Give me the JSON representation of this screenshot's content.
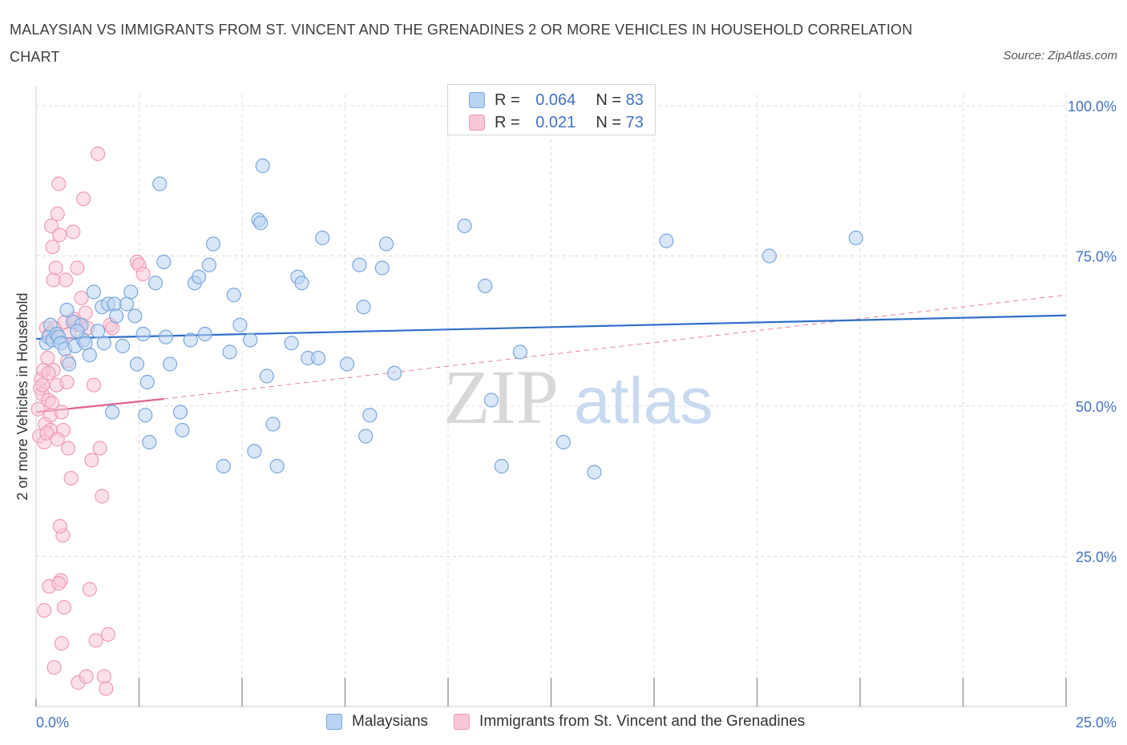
{
  "title": "MALAYSIAN VS IMMIGRANTS FROM ST. VINCENT AND THE GRENADINES 2 OR MORE VEHICLES IN HOUSEHOLD CORRELATION CHART",
  "source": "Source: ZipAtlas.com",
  "watermark": {
    "zip": "ZIP",
    "atlas": "atlas"
  },
  "legend": {
    "rows": [
      {
        "r_label": "R =",
        "r_value": "0.064",
        "n_label": "N =",
        "n_value": "83"
      },
      {
        "r_label": "R =",
        "r_value": "0.021",
        "n_label": "N =",
        "n_value": "73"
      }
    ]
  },
  "bottom_legend": [
    "Malaysians",
    "Immigrants from St. Vincent and the Grenadines"
  ],
  "colors": {
    "blue_fill": "#b9d3f3",
    "blue_stroke": "#7aa6dc",
    "blue_line": "#2f6fca",
    "pink_fill": "#f8c7d6",
    "pink_stroke": "#ef9ab4",
    "pink_line": "#e0628e",
    "axis_label": "#4472c4",
    "grid": "#dcdcdc"
  },
  "chart_data": {
    "type": "scatter",
    "title": "MALAYSIAN VS IMMIGRANTS FROM ST. VINCENT AND THE GRENADINES 2 OR MORE VEHICLES IN HOUSEHOLD CORRELATION CHART",
    "xlabel": "",
    "ylabel": "2 or more Vehicles in Household",
    "xlim": [
      0,
      25
    ],
    "ylim": [
      0,
      100
    ],
    "x_ticks": [
      "0.0%",
      "25.0%"
    ],
    "y_ticks": [
      "25.0%",
      "50.0%",
      "75.0%",
      "100.0%"
    ],
    "y_tick_values": [
      25,
      50,
      75,
      100
    ],
    "grid": true,
    "legend_position": "top-center",
    "series": [
      {
        "name": "Malaysians",
        "R": 0.064,
        "N": 83,
        "trend": {
          "x": [
            0,
            25
          ],
          "y": [
            61.2,
            65.1
          ],
          "style": "solid"
        },
        "points": [
          [
            0.25,
            60.5
          ],
          [
            0.3,
            61.5
          ],
          [
            0.35,
            63.5
          ],
          [
            0.4,
            61.0
          ],
          [
            0.5,
            62.0
          ],
          [
            0.55,
            61.5
          ],
          [
            0.6,
            60.5
          ],
          [
            0.7,
            59.5
          ],
          [
            0.8,
            57.0
          ],
          [
            0.9,
            64.0
          ],
          [
            0.95,
            60.0
          ],
          [
            1.1,
            63.5
          ],
          [
            1.15,
            61.0
          ],
          [
            1.2,
            60.5
          ],
          [
            1.3,
            58.5
          ],
          [
            1.4,
            69.0
          ],
          [
            1.5,
            62.5
          ],
          [
            1.6,
            66.5
          ],
          [
            1.65,
            60.5
          ],
          [
            1.75,
            67.0
          ],
          [
            1.85,
            49.0
          ],
          [
            1.9,
            67.0
          ],
          [
            1.95,
            65.0
          ],
          [
            2.1,
            60.0
          ],
          [
            2.2,
            67.0
          ],
          [
            2.3,
            69.0
          ],
          [
            2.4,
            65.0
          ],
          [
            2.45,
            57.0
          ],
          [
            2.6,
            62.0
          ],
          [
            2.65,
            48.5
          ],
          [
            2.7,
            54.0
          ],
          [
            2.75,
            44.0
          ],
          [
            2.9,
            70.5
          ],
          [
            3.0,
            87.0
          ],
          [
            3.1,
            74.0
          ],
          [
            3.15,
            61.5
          ],
          [
            3.25,
            57.0
          ],
          [
            3.5,
            49.0
          ],
          [
            3.55,
            46.0
          ],
          [
            3.75,
            61.0
          ],
          [
            3.85,
            70.5
          ],
          [
            3.95,
            71.5
          ],
          [
            4.1,
            62.0
          ],
          [
            4.2,
            73.5
          ],
          [
            4.3,
            77.0
          ],
          [
            4.55,
            40.0
          ],
          [
            4.7,
            59.0
          ],
          [
            4.8,
            68.5
          ],
          [
            4.95,
            63.5
          ],
          [
            5.2,
            61.0
          ],
          [
            5.3,
            42.5
          ],
          [
            5.4,
            81.0
          ],
          [
            5.45,
            80.5
          ],
          [
            5.5,
            90.0
          ],
          [
            5.6,
            55.0
          ],
          [
            5.75,
            47.0
          ],
          [
            5.85,
            40.0
          ],
          [
            6.2,
            60.5
          ],
          [
            6.35,
            71.5
          ],
          [
            6.45,
            70.5
          ],
          [
            6.6,
            58.0
          ],
          [
            6.85,
            58.0
          ],
          [
            6.95,
            78.0
          ],
          [
            7.55,
            57.0
          ],
          [
            7.85,
            73.5
          ],
          [
            7.95,
            66.5
          ],
          [
            8.0,
            45.0
          ],
          [
            8.1,
            48.5
          ],
          [
            8.4,
            73.0
          ],
          [
            8.5,
            77.0
          ],
          [
            8.7,
            55.5
          ],
          [
            10.4,
            80.0
          ],
          [
            10.9,
            70.0
          ],
          [
            11.05,
            51.0
          ],
          [
            11.3,
            40.0
          ],
          [
            11.75,
            59.0
          ],
          [
            12.8,
            44.0
          ],
          [
            13.55,
            39.0
          ],
          [
            15.3,
            77.5
          ],
          [
            17.8,
            75.0
          ],
          [
            19.9,
            78.0
          ],
          [
            0.75,
            66.0
          ],
          [
            1.0,
            62.5
          ]
        ]
      },
      {
        "name": "Immigrants from St. Vincent and the Grenadines",
        "R": 0.021,
        "N": 73,
        "trend": {
          "x": [
            0,
            3.1
          ],
          "y": [
            49.0,
            51.2
          ],
          "style": "solid",
          "extended": {
            "x": [
              3.1,
              25
            ],
            "y": [
              51.2,
              68.5
            ],
            "style": "dashed"
          }
        },
        "points": [
          [
            0.05,
            49.5
          ],
          [
            0.08,
            45.0
          ],
          [
            0.1,
            53.0
          ],
          [
            0.12,
            54.5
          ],
          [
            0.15,
            52.0
          ],
          [
            0.18,
            56.0
          ],
          [
            0.2,
            44.0
          ],
          [
            0.22,
            47.0
          ],
          [
            0.25,
            63.0
          ],
          [
            0.28,
            58.0
          ],
          [
            0.3,
            51.0
          ],
          [
            0.32,
            20.0
          ],
          [
            0.35,
            46.0
          ],
          [
            0.37,
            80.0
          ],
          [
            0.4,
            76.5
          ],
          [
            0.42,
            71.0
          ],
          [
            0.45,
            63.0
          ],
          [
            0.48,
            73.0
          ],
          [
            0.5,
            53.5
          ],
          [
            0.52,
            82.0
          ],
          [
            0.55,
            87.0
          ],
          [
            0.57,
            78.5
          ],
          [
            0.6,
            21.0
          ],
          [
            0.62,
            10.5
          ],
          [
            0.65,
            28.5
          ],
          [
            0.68,
            16.5
          ],
          [
            0.7,
            64.0
          ],
          [
            0.72,
            71.0
          ],
          [
            0.75,
            54.0
          ],
          [
            0.78,
            43.0
          ],
          [
            0.8,
            62.0
          ],
          [
            0.85,
            38.0
          ],
          [
            0.9,
            79.0
          ],
          [
            0.95,
            64.0
          ],
          [
            1.0,
            73.0
          ],
          [
            1.05,
            63.5
          ],
          [
            1.1,
            68.0
          ],
          [
            1.15,
            84.5
          ],
          [
            1.2,
            65.5
          ],
          [
            1.25,
            63.0
          ],
          [
            1.3,
            19.5
          ],
          [
            1.35,
            41.0
          ],
          [
            1.4,
            53.5
          ],
          [
            1.45,
            11.0
          ],
          [
            1.5,
            92.0
          ],
          [
            1.55,
            43.0
          ],
          [
            1.6,
            35.0
          ],
          [
            1.65,
            5.0
          ],
          [
            1.7,
            3.0
          ],
          [
            1.75,
            12.0
          ],
          [
            1.8,
            63.5
          ],
          [
            1.85,
            63.0
          ],
          [
            2.45,
            74.0
          ],
          [
            2.5,
            73.5
          ],
          [
            2.6,
            72.0
          ],
          [
            0.26,
            45.5
          ],
          [
            0.33,
            62.0
          ],
          [
            0.39,
            50.5
          ],
          [
            0.44,
            6.5
          ],
          [
            0.58,
            30.0
          ],
          [
            0.66,
            46.0
          ],
          [
            0.76,
            57.5
          ],
          [
            0.92,
            64.5
          ],
          [
            1.02,
            4.0
          ],
          [
            1.22,
            5.0
          ],
          [
            0.2,
            16.0
          ],
          [
            0.55,
            20.5
          ],
          [
            0.35,
            48.5
          ],
          [
            0.16,
            53.5
          ],
          [
            0.62,
            49.0
          ],
          [
            0.42,
            56.0
          ],
          [
            0.52,
            44.5
          ],
          [
            0.3,
            55.5
          ]
        ]
      }
    ]
  }
}
